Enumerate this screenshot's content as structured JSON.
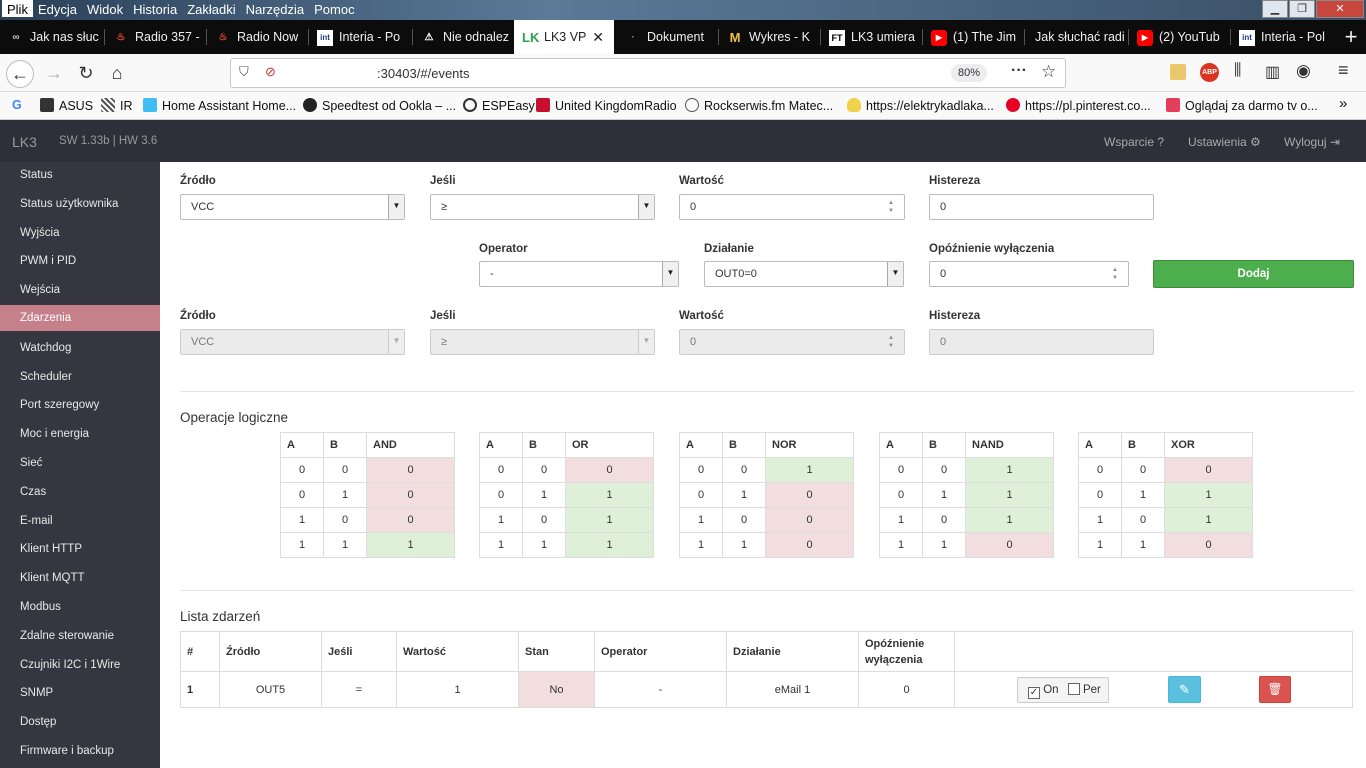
{
  "menubar": {
    "items": [
      "Plik",
      "Edycja",
      "Widok",
      "Historia",
      "Zakładki",
      "Narzędzia",
      "Pomoc"
    ]
  },
  "tabs": [
    {
      "label": "Jak nas słuc",
      "icon": "∞"
    },
    {
      "label": "Radio 357 -",
      "icon": "🔥"
    },
    {
      "label": "Radio Now",
      "icon": "🔥"
    },
    {
      "label": "Interia - Po",
      "icon": "int"
    },
    {
      "label": "Nie odnalez",
      "icon": "⚠"
    },
    {
      "label": "LK3 VP",
      "icon": "LK"
    },
    {
      "label": "Dokument",
      "icon": "·"
    },
    {
      "label": "Wykres - K",
      "icon": "M"
    },
    {
      "label": "LK3 umiera",
      "icon": "FT"
    },
    {
      "label": "(1) The Jim",
      "icon": "▶"
    },
    {
      "label": "Jak słuchać radi",
      "icon": ""
    },
    {
      "label": "(2) YouTub",
      "icon": "▶"
    },
    {
      "label": "Interia - Pol",
      "icon": "int"
    }
  ],
  "nav": {
    "url": ":30403/#/events",
    "zoom": "80%"
  },
  "bookmarks": [
    "G",
    "ASUS",
    "IR",
    "Home Assistant Home...",
    "Speedtest od Ookla – ...",
    "ESPEasy",
    "United KingdomRadio",
    "Rockserwis.fm  Matec...",
    "https://elektrykadlaka...",
    "https://pl.pinterest.co...",
    "Oglądaj za darmo tv o..."
  ],
  "app": {
    "brand": "LK3",
    "version": "SW 1.33b | HW 3.6",
    "support": "Wsparcie",
    "settings": "Ustawienia",
    "logout": "Wyloguj"
  },
  "sidebar": [
    "Status",
    "Status użytkownika",
    "Wyjścia",
    "PWM i PID",
    "Wejścia",
    "Zdarzenia",
    "Watchdog",
    "Scheduler",
    "Port szeregowy",
    "Moc i energia",
    "Sieć",
    "Czas",
    "E-mail",
    "Klient HTTP",
    "Klient MQTT",
    "Modbus",
    "Zdalne sterowanie",
    "Czujniki I2C i 1Wire",
    "SNMP",
    "Dostęp",
    "Firmware i backup"
  ],
  "form": {
    "source_label": "Źródło",
    "source_value": "VCC",
    "if_label": "Jeśli",
    "if_value": "≥",
    "value_label": "Wartość",
    "value_value": "0",
    "hyst_label": "Histereza",
    "hyst_value": "0",
    "operator_label": "Operator",
    "operator_value": "-",
    "action_label": "Działanie",
    "action_value": "OUT0=0",
    "delay_label": "Opóźnienie wyłączenia",
    "delay_value": "0",
    "add_button": "Dodaj",
    "source2_label": "Źródło",
    "source2_value": "VCC",
    "if2_label": "Jeśli",
    "if2_value": "≥",
    "value2_label": "Wartość",
    "value2_value": "0",
    "hyst2_label": "Histereza",
    "hyst2_value": "0"
  },
  "logic": {
    "title": "Operacje logiczne",
    "tables": [
      {
        "op": "AND",
        "rows": [
          [
            "0",
            "0",
            "0"
          ],
          [
            "0",
            "1",
            "0"
          ],
          [
            "1",
            "0",
            "0"
          ],
          [
            "1",
            "1",
            "1"
          ]
        ]
      },
      {
        "op": "OR",
        "rows": [
          [
            "0",
            "0",
            "0"
          ],
          [
            "0",
            "1",
            "1"
          ],
          [
            "1",
            "0",
            "1"
          ],
          [
            "1",
            "1",
            "1"
          ]
        ]
      },
      {
        "op": "NOR",
        "rows": [
          [
            "0",
            "0",
            "1"
          ],
          [
            "0",
            "1",
            "0"
          ],
          [
            "1",
            "0",
            "0"
          ],
          [
            "1",
            "1",
            "0"
          ]
        ]
      },
      {
        "op": "NAND",
        "rows": [
          [
            "0",
            "0",
            "1"
          ],
          [
            "0",
            "1",
            "1"
          ],
          [
            "1",
            "0",
            "1"
          ],
          [
            "1",
            "1",
            "0"
          ]
        ]
      },
      {
        "op": "XOR",
        "rows": [
          [
            "0",
            "0",
            "0"
          ],
          [
            "0",
            "1",
            "1"
          ],
          [
            "1",
            "0",
            "1"
          ],
          [
            "1",
            "1",
            "0"
          ]
        ]
      }
    ],
    "colA": "A",
    "colB": "B"
  },
  "events": {
    "title": "Lista zdarzeń",
    "headers": [
      "#",
      "Źródło",
      "Jeśli",
      "Wartość",
      "Stan",
      "Operator",
      "Działanie",
      "Opóźnienie wyłączenia"
    ],
    "row": {
      "num": "1",
      "source": "OUT5",
      "if": "=",
      "value": "1",
      "state": "No",
      "operator": "-",
      "action": "eMail 1",
      "delay": "0",
      "on_label": "On",
      "per_label": "Per",
      "on_checked": true,
      "per_checked": false
    }
  },
  "colors": {
    "accent_active": "#c6808a",
    "add_green": "#4cae4c",
    "edit_blue": "#5bc0de",
    "delete_red": "#d9534f",
    "sidebar_bg": "#363640"
  }
}
